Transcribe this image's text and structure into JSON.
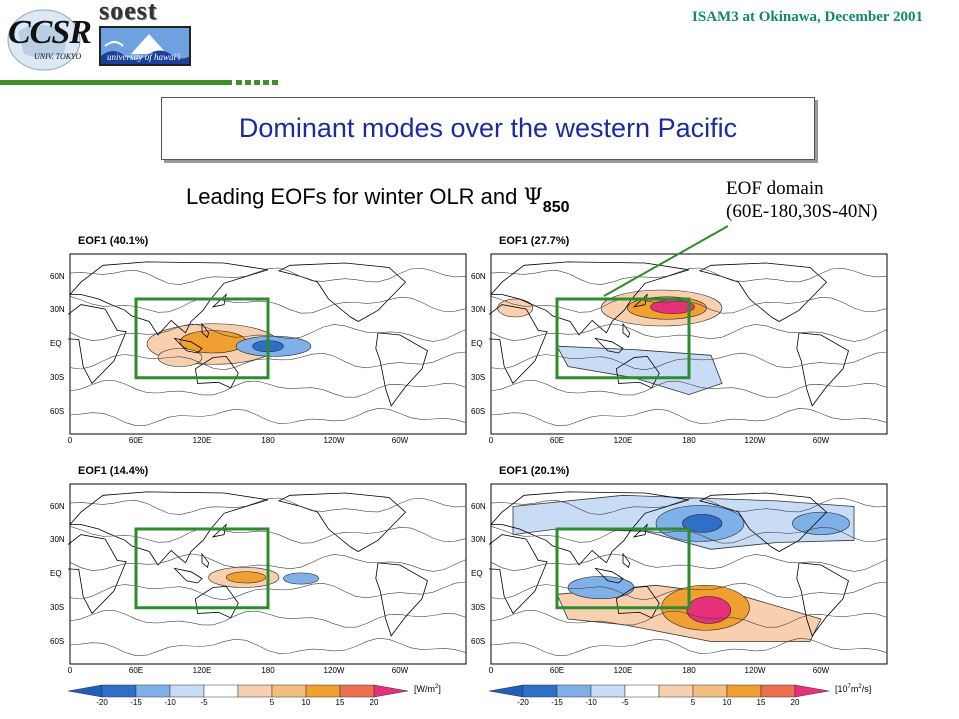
{
  "header": {
    "logo_ccsr_text": "CCSR",
    "logo_ccsr_sub": "UNIV. TOKYO",
    "logo_soest_text": "soest",
    "logo_soest_sub": "university of hawai'i",
    "title": "ISAM3 at Okinawa, December 2001"
  },
  "slide": {
    "title": "Dominant modes over the western Pacific",
    "subtitle_prefix": "Leading EOFs for winter OLR and ",
    "subtitle_symbol": "Ψ",
    "subtitle_subscript": "850",
    "domain_line1": "EOF domain",
    "domain_line2": "(60E-180,30S-40N)"
  },
  "axes": {
    "y_ticks": [
      "60N",
      "30N",
      "EQ",
      "30S",
      "60S"
    ],
    "x_ticks": [
      "0",
      "60E",
      "120E",
      "180",
      "120W",
      "60W"
    ]
  },
  "panels": [
    {
      "id": "olr-obs",
      "label": "EOF1 (40.1%)",
      "variance_pct": 40.1
    },
    {
      "id": "psi-obs",
      "label": "EOF1 (27.7%)",
      "variance_pct": 27.7
    },
    {
      "id": "olr-model",
      "label": "EOF1 (14.4%)",
      "variance_pct": 14.4
    },
    {
      "id": "psi-model",
      "label": "EOF1 (20.1%)",
      "variance_pct": 20.1
    }
  ],
  "colorbars": [
    {
      "ticks": [
        "-20",
        "-15",
        "-10",
        "-5",
        "5",
        "10",
        "15",
        "20"
      ],
      "unit": "[W/m",
      "unit_sup": "2",
      "unit_end": "]"
    },
    {
      "ticks": [
        "-20",
        "-15",
        "-10",
        "-5",
        "5",
        "10",
        "15",
        "20"
      ],
      "unit": "[10",
      "unit_sup": "7",
      "unit_mid": "m",
      "unit_sup2": "2",
      "unit_end": "/s]"
    }
  ],
  "colors": {
    "title_blue": "#1b2d9e",
    "header_green": "#0e8a6a",
    "domain_box": "#2e8b2e",
    "neg_dark": "#2f6fc8",
    "neg_mid": "#7fb0e8",
    "neg_light": "#c8dcf5",
    "pos_light": "#f8d0b0",
    "pos_mid": "#f0a030",
    "pos_dark": "#e8307a"
  }
}
